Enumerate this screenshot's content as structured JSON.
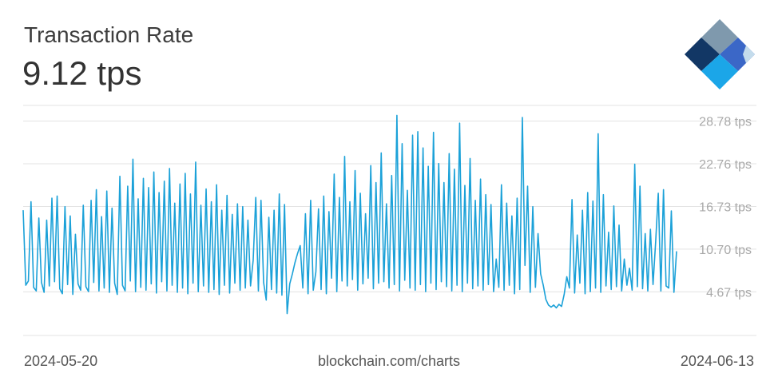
{
  "header": {
    "title": "Transaction Rate",
    "value": "9.12 tps"
  },
  "footer": {
    "start_date": "2024-05-20",
    "source": "blockchain.com/charts",
    "end_date": "2024-06-13"
  },
  "colors": {
    "line": "#1ba1d8",
    "grid": "#e3e3e3",
    "tick_text": "#a9a9a9",
    "logo_dark": "#123765",
    "logo_mid": "#3b67c7",
    "logo_light": "#c4dcec",
    "logo_slate": "#7f99ad",
    "logo_cyan": "#1ba6e8"
  },
  "chart_data": {
    "type": "line",
    "xlabel": "",
    "ylabel": "",
    "x_range": [
      "2024-05-20",
      "2024-06-13"
    ],
    "ylim": [
      -1.5,
      31
    ],
    "yticks": [
      4.67,
      10.7,
      16.73,
      22.76,
      28.78
    ],
    "ytick_labels": [
      "4.67 tps",
      "10.70 tps",
      "16.73 tps",
      "22.76 tps",
      "28.78 tps"
    ],
    "grid": true,
    "series": [
      {
        "values": [
          16.2,
          5.6,
          6.2,
          17.4,
          5.3,
          4.8,
          15.1,
          6.0,
          4.6,
          14.8,
          5.5,
          17.9,
          6.1,
          18.2,
          5.1,
          4.4,
          16.7,
          5.7,
          15.4,
          4.3,
          12.8,
          5.8,
          4.9,
          16.9,
          5.4,
          4.7,
          17.6,
          6.0,
          19.1,
          4.8,
          15.3,
          5.2,
          18.9,
          4.6,
          16.5,
          5.9,
          4.3,
          21.0,
          5.6,
          4.8,
          19.6,
          6.2,
          23.4,
          4.7,
          17.8,
          5.3,
          20.7,
          4.9,
          19.4,
          5.8,
          21.6,
          4.5,
          18.7,
          6.1,
          20.3,
          4.8,
          22.1,
          5.6,
          17.2,
          4.6,
          19.9,
          5.2,
          21.4,
          4.4,
          18.5,
          5.9,
          23.0,
          4.7,
          16.9,
          5.5,
          19.2,
          4.6,
          17.4,
          5.0,
          19.8,
          4.3,
          16.2,
          5.6,
          18.3,
          4.5,
          15.6,
          5.9,
          17.1,
          4.9,
          16.7,
          5.2,
          14.8,
          5.5,
          9.1,
          18.0,
          4.8,
          17.6,
          6.0,
          3.5,
          15.2,
          5.0,
          16.2,
          4.5,
          18.5,
          4.2,
          17.0,
          1.6,
          5.8,
          7.2,
          8.8,
          10.1,
          11.2,
          5.2,
          15.7,
          4.4,
          17.6,
          4.9,
          7.5,
          16.4,
          5.0,
          18.2,
          4.4,
          16.0,
          6.6,
          21.3,
          4.7,
          18.0,
          6.2,
          23.8,
          5.5,
          17.4,
          6.4,
          21.8,
          4.9,
          18.6,
          5.8,
          15.7,
          6.6,
          22.5,
          5.1,
          20.1,
          5.9,
          24.3,
          6.1,
          17.1,
          5.2,
          21.1,
          5.7,
          29.6,
          4.8,
          25.6,
          6.3,
          19.0,
          5.2,
          26.8,
          4.9,
          27.3,
          5.7,
          25.0,
          4.7,
          22.4,
          5.9,
          27.2,
          5.0,
          22.8,
          6.1,
          20.1,
          5.4,
          24.2,
          4.8,
          22.0,
          5.6,
          28.5,
          4.7,
          19.7,
          5.9,
          23.5,
          5.1,
          17.6,
          5.5,
          20.6,
          4.9,
          18.4,
          5.7,
          17.0,
          4.7,
          9.3,
          5.3,
          19.8,
          4.9,
          17.2,
          5.6,
          15.4,
          4.4,
          17.9,
          5.0,
          29.3,
          8.4,
          19.6,
          4.6,
          16.7,
          5.3,
          12.9,
          7.2,
          5.6,
          3.6,
          2.8,
          2.5,
          2.8,
          2.4,
          2.9,
          2.6,
          4.3,
          6.8,
          5.2,
          17.7,
          4.5,
          12.7,
          5.9,
          16.2,
          4.4,
          18.7,
          4.7,
          17.5,
          5.2,
          27.0,
          4.6,
          18.4,
          5.5,
          13.1,
          5.0,
          16.8,
          5.4,
          14.1,
          4.8,
          9.3,
          5.6,
          8.0,
          4.9,
          22.7,
          5.4,
          19.6,
          5.1,
          12.9,
          4.8,
          13.5,
          5.7,
          11.7,
          18.6,
          4.8,
          19.1,
          5.5,
          5.2,
          16.1,
          4.6,
          10.4
        ]
      }
    ]
  }
}
